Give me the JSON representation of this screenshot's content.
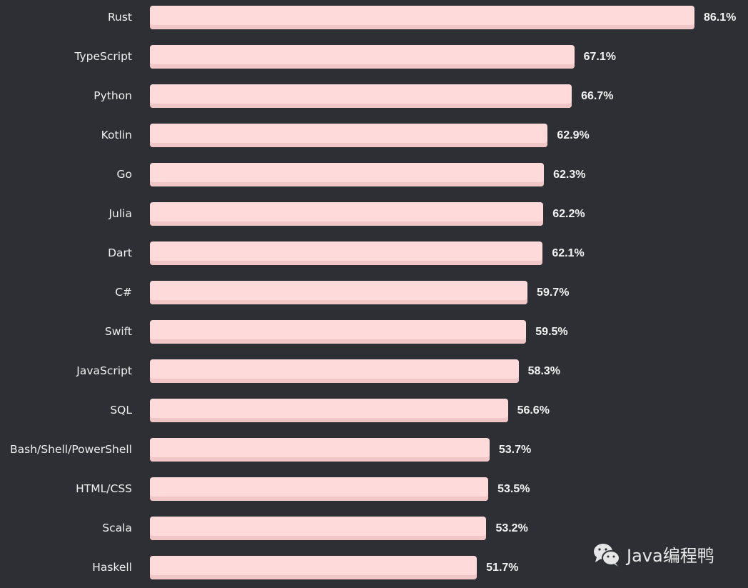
{
  "chart_data": {
    "type": "bar",
    "orientation": "horizontal",
    "categories": [
      "Rust",
      "TypeScript",
      "Python",
      "Kotlin",
      "Go",
      "Julia",
      "Dart",
      "C#",
      "Swift",
      "JavaScript",
      "SQL",
      "Bash/Shell/PowerShell",
      "HTML/CSS",
      "Scala",
      "Haskell"
    ],
    "values": [
      86.1,
      67.1,
      66.7,
      62.9,
      62.3,
      62.2,
      62.1,
      59.7,
      59.5,
      58.3,
      56.6,
      53.7,
      53.5,
      53.2,
      51.7
    ],
    "value_labels": [
      "86.1%",
      "67.1%",
      "66.7%",
      "62.9%",
      "62.3%",
      "62.2%",
      "62.1%",
      "59.7%",
      "59.5%",
      "58.3%",
      "56.6%",
      "53.7%",
      "53.5%",
      "53.2%",
      "51.7%"
    ],
    "xlim": [
      0,
      86.1
    ],
    "grid": false,
    "colors": {
      "bar": "#ffdada",
      "bar_shade": "#f0c6c6",
      "background": "#2d2f34",
      "text": "#f0f0f0"
    }
  },
  "watermark": {
    "text": "Java编程鸭",
    "icon": "wechat-icon"
  }
}
